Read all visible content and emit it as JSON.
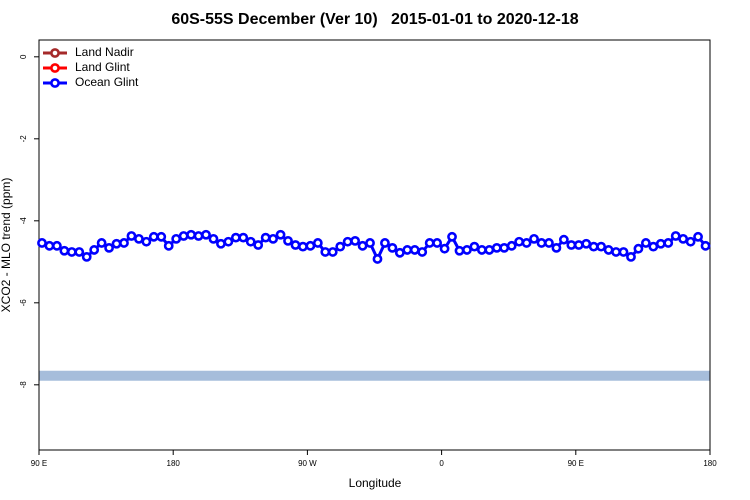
{
  "chart_data": {
    "type": "line",
    "title": "60S-55S December (Ver 10)   2015-01-01 to 2020-12-18",
    "x_label": "Longitude",
    "y_label": "XCO2 - MLO trend (ppm)",
    "xlim": [
      90,
      540
    ],
    "xticks": [
      {
        "value": 90,
        "label": "90 E"
      },
      180,
      {
        "value": 270,
        "label": "90 W"
      },
      {
        "value": 360,
        "label": "0"
      },
      {
        "value": 450,
        "label": "90 E"
      },
      {
        "value": 540,
        "label": "180"
      }
    ],
    "ylim": [
      -9.59,
      0.41
    ],
    "yticks": [
      0,
      -2,
      -4,
      -6,
      -8
    ],
    "legend": "top-left",
    "reference_line": {
      "value": -7.78,
      "color": "#a6bddb"
    },
    "series": [
      {
        "name": "Land Nadir",
        "color": "#a52a2a",
        "x": [],
        "values": []
      },
      {
        "name": "Land Glint",
        "color": "#ff0000",
        "x": [],
        "values": []
      },
      {
        "name": "Ocean Glint",
        "color": "#0000ff",
        "x": [
          92,
          97,
          102,
          107,
          112,
          117,
          122,
          127,
          132,
          137,
          142,
          147,
          152,
          157,
          162,
          167,
          172,
          177,
          182,
          187,
          192,
          197,
          202,
          207,
          212,
          217,
          222,
          227,
          232,
          237,
          242,
          247,
          252,
          257,
          262,
          267,
          272,
          277,
          282,
          287,
          292,
          297,
          302,
          307,
          312,
          317,
          322,
          327,
          332,
          337,
          342,
          347,
          352,
          357,
          362,
          367,
          372,
          377,
          382,
          387,
          392,
          397,
          402,
          407,
          412,
          417,
          422,
          427,
          432,
          437,
          442,
          447,
          452,
          457,
          462,
          467,
          472,
          477,
          482,
          487,
          492,
          497,
          502,
          507,
          512,
          517,
          522,
          527,
          532,
          537
        ],
        "values": [
          -4.54,
          -4.61,
          -4.61,
          -4.73,
          -4.76,
          -4.76,
          -4.88,
          -4.71,
          -4.54,
          -4.66,
          -4.56,
          -4.54,
          -4.37,
          -4.44,
          -4.51,
          -4.39,
          -4.39,
          -4.61,
          -4.44,
          -4.37,
          -4.34,
          -4.37,
          -4.34,
          -4.44,
          -4.56,
          -4.51,
          -4.41,
          -4.41,
          -4.51,
          -4.59,
          -4.41,
          -4.44,
          -4.34,
          -4.49,
          -4.59,
          -4.63,
          -4.61,
          -4.54,
          -4.76,
          -4.76,
          -4.63,
          -4.51,
          -4.49,
          -4.61,
          -4.54,
          -4.93,
          -4.54,
          -4.66,
          -4.78,
          -4.71,
          -4.71,
          -4.76,
          -4.54,
          -4.54,
          -4.68,
          -4.39,
          -4.73,
          -4.71,
          -4.63,
          -4.71,
          -4.71,
          -4.66,
          -4.66,
          -4.61,
          -4.51,
          -4.54,
          -4.44,
          -4.54,
          -4.54,
          -4.66,
          -4.46,
          -4.59,
          -4.59,
          -4.56,
          -4.63,
          -4.63,
          -4.71,
          -4.76,
          -4.76,
          -4.88,
          -4.68,
          -4.54,
          -4.63,
          -4.56,
          -4.54,
          -4.37,
          -4.44,
          -4.51,
          -4.39,
          -4.61
        ]
      }
    ]
  }
}
